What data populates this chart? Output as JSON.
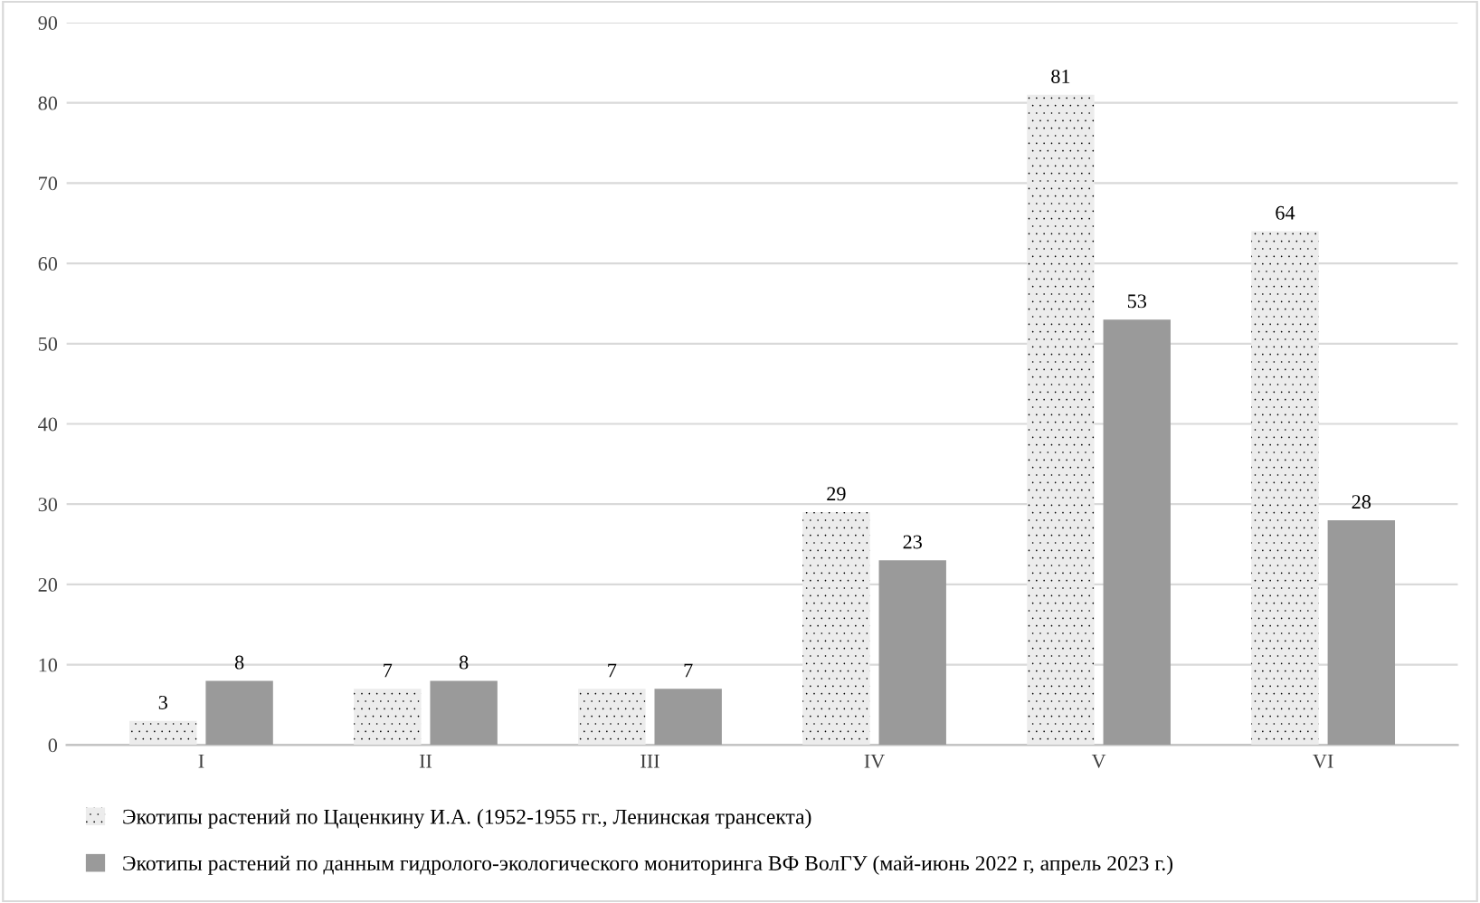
{
  "chart_data": {
    "type": "bar",
    "categories": [
      "I",
      "II",
      "III",
      "IV",
      "V",
      "VI"
    ],
    "series": [
      {
        "name": "Экотипы растений по Цаценкину И.А. (1952-1955 гг., Ленинская трансекта)",
        "color": "#ececec",
        "values": [
          3,
          7,
          7,
          29,
          81,
          64
        ]
      },
      {
        "name": "Экотипы растений по данным гидролого-экологического мониторинга ВФ ВолГУ (май-июнь 2022 г, апрель 2023 г.)",
        "color": "#9a9a9a",
        "values": [
          8,
          8,
          7,
          23,
          53,
          28
        ]
      }
    ],
    "ylim": [
      0,
      90
    ],
    "yticks": [
      0,
      10,
      20,
      30,
      40,
      50,
      60,
      70,
      80,
      90
    ],
    "grid": "y",
    "data_labels": true,
    "legend": "bottom"
  }
}
